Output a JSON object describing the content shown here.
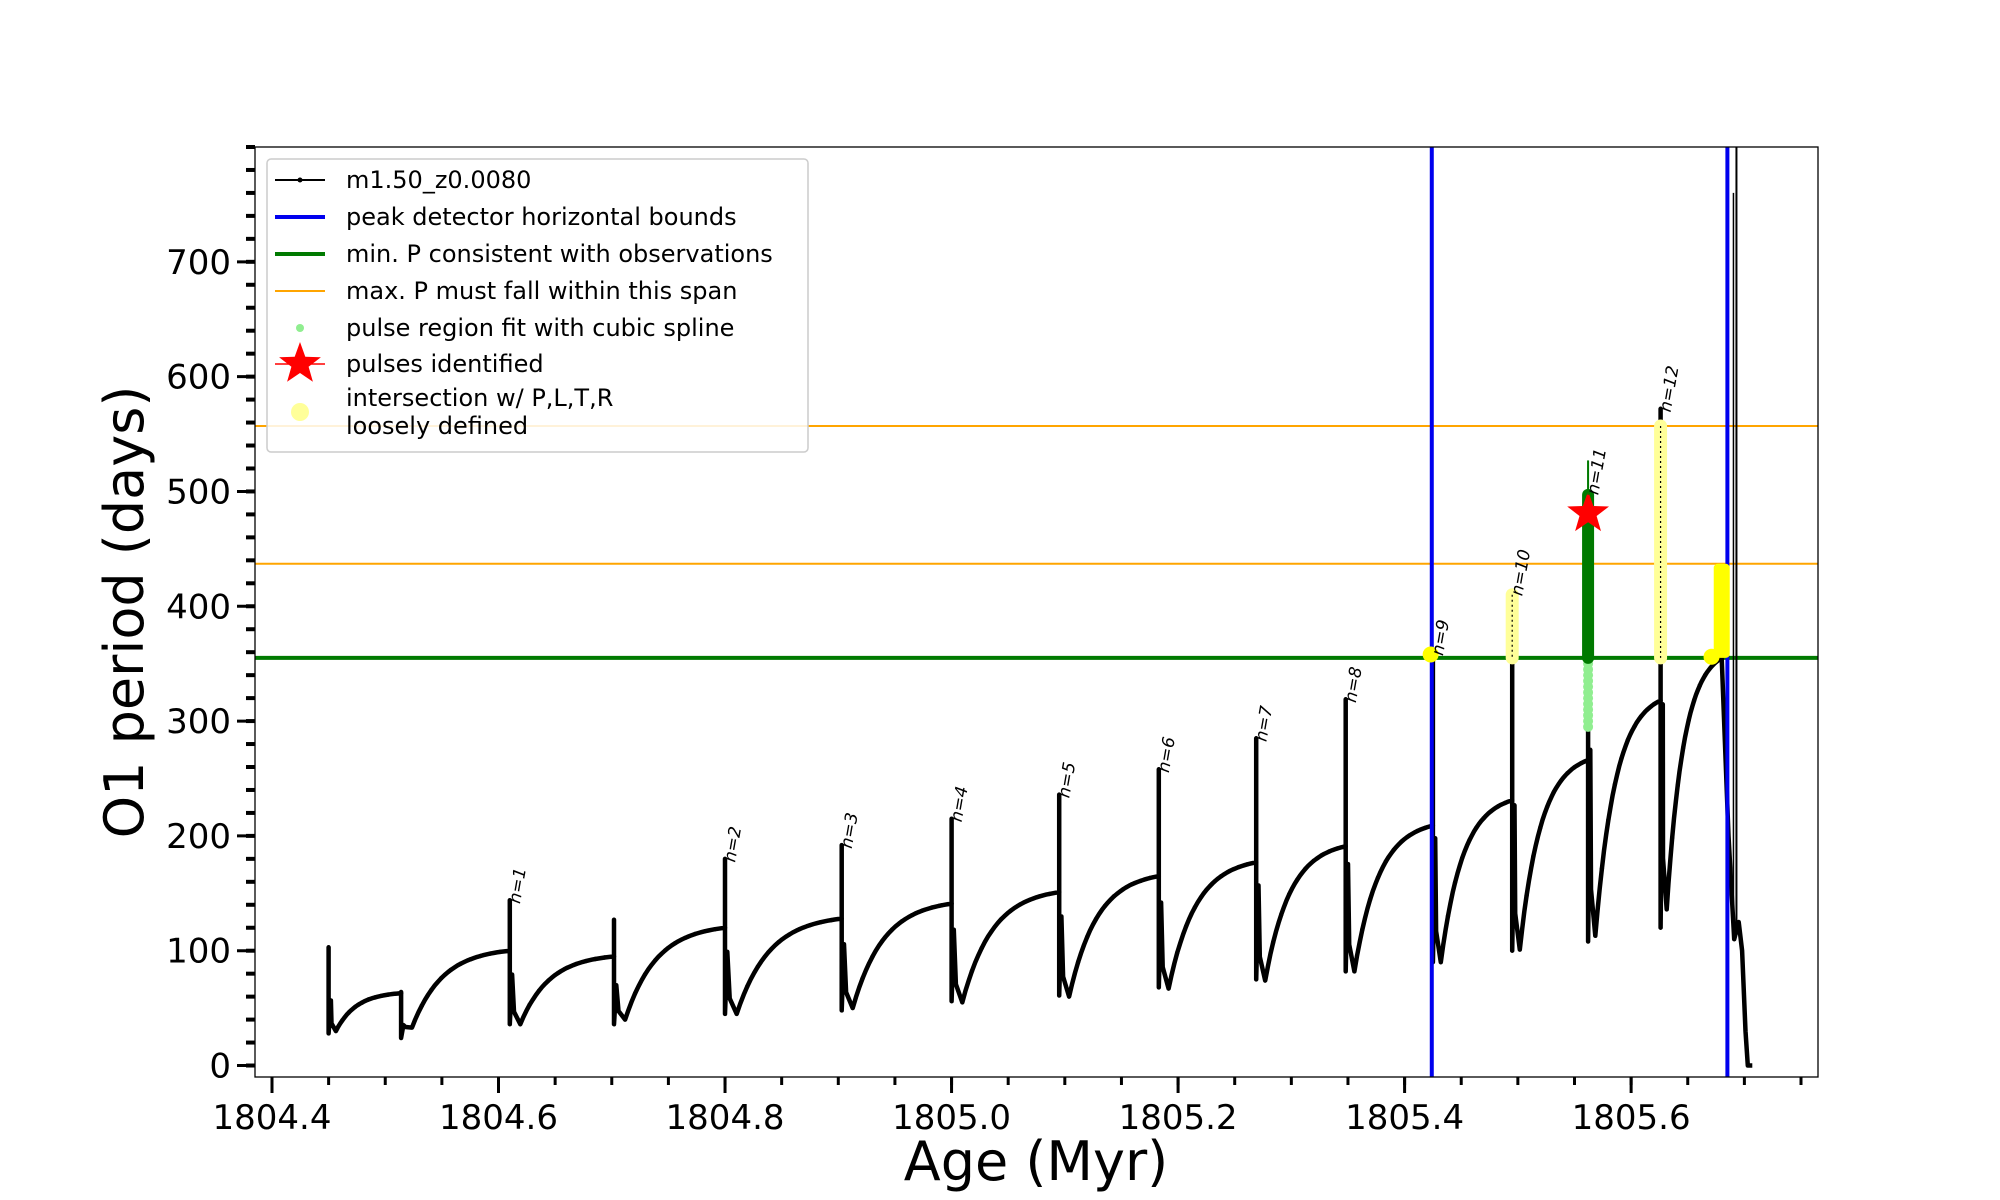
{
  "chart_data": {
    "type": "line",
    "xlabel": "Age (Myr)",
    "ylabel": "O1 period (days)",
    "xlim": [
      1804.385,
      1805.765
    ],
    "ylim": [
      -10,
      800
    ],
    "xticks": [
      1804.4,
      1804.6,
      1804.8,
      1805.0,
      1805.2,
      1805.4,
      1805.6
    ],
    "xtick_labels": [
      "1804.4",
      "1804.6",
      "1804.8",
      "1805.0",
      "1805.2",
      "1805.4",
      "1805.6"
    ],
    "yticks": [
      0,
      100,
      200,
      300,
      400,
      500,
      600,
      700
    ],
    "ytick_labels": [
      "0",
      "100",
      "200",
      "300",
      "400",
      "500",
      "600",
      "700"
    ],
    "legend_position": "top-left",
    "legend": [
      {
        "label": "m1.50_z0.0080",
        "kind": "line-marker",
        "color": "#000000"
      },
      {
        "label": "peak detector horizontal bounds",
        "kind": "line",
        "color": "#0000ee"
      },
      {
        "label": "min. P consistent with observations",
        "kind": "line",
        "color": "#007a00"
      },
      {
        "label": "max. P must fall within this span",
        "kind": "thinline",
        "color": "#ffa500"
      },
      {
        "label": "pulse region fit with cubic spline",
        "kind": "dot",
        "color": "#90ee90"
      },
      {
        "label": "pulses identified",
        "kind": "star",
        "color": "#ff0000"
      },
      {
        "label": "intersection w/ P,L,T,R",
        "label2": "loosely defined",
        "kind": "bigdot",
        "color": "#ffff99"
      }
    ],
    "colors": {
      "track": "#000000",
      "bounds": "#0000ee",
      "min_p": "#007a00",
      "max_p": "#ffa500",
      "spline": "#90ee90",
      "star": "#ff0000",
      "intersection": "#ffff00",
      "intersection_light": "#ffff99"
    },
    "vertical_bounds": [
      1805.424,
      1805.685
    ],
    "min_p": 355,
    "max_p_span": [
      437,
      557
    ],
    "cycles": [
      {
        "t0": 1804.45,
        "t1": 1804.514,
        "base": 28,
        "min": 30,
        "plateau": 63,
        "peak": 103
      },
      {
        "t0": 1804.514,
        "t1": 1804.61,
        "base": 24,
        "min": 33,
        "plateau": 100,
        "peak": 64
      },
      {
        "t0": 1804.61,
        "t1": 1804.702,
        "base": 36,
        "min": 36,
        "plateau": 95,
        "peak": 144
      },
      {
        "t0": 1804.702,
        "t1": 1804.8,
        "base": 36,
        "min": 40,
        "plateau": 120,
        "peak": 127
      },
      {
        "t0": 1804.8,
        "t1": 1804.903,
        "base": 45,
        "min": 45,
        "plateau": 128,
        "peak": 180
      },
      {
        "t0": 1804.903,
        "t1": 1805.0,
        "base": 48,
        "min": 50,
        "plateau": 141,
        "peak": 192
      },
      {
        "t0": 1805.0,
        "t1": 1805.095,
        "base": 56,
        "min": 55,
        "plateau": 151,
        "peak": 215
      },
      {
        "t0": 1805.095,
        "t1": 1805.183,
        "base": 61,
        "min": 60,
        "plateau": 165,
        "peak": 236
      },
      {
        "t0": 1805.183,
        "t1": 1805.269,
        "base": 68,
        "min": 67,
        "plateau": 177,
        "peak": 258
      },
      {
        "t0": 1805.269,
        "t1": 1805.348,
        "base": 75,
        "min": 74,
        "plateau": 191,
        "peak": 285
      },
      {
        "t0": 1805.348,
        "t1": 1805.425,
        "base": 82,
        "min": 82,
        "plateau": 209,
        "peak": 319
      },
      {
        "t0": 1805.425,
        "t1": 1805.495,
        "base": 90,
        "min": 90,
        "plateau": 231,
        "peak": 360
      },
      {
        "t0": 1805.495,
        "t1": 1805.562,
        "base": 100,
        "min": 101,
        "plateau": 266,
        "peak": 412
      },
      {
        "t0": 1805.562,
        "t1": 1805.626,
        "base": 108,
        "min": 113,
        "plateau": 318,
        "peak": 500
      },
      {
        "t0": 1805.626,
        "t1": 1805.68,
        "base": 120,
        "min": 136,
        "plateau": 355,
        "peak": 572
      }
    ],
    "pulse_labels": [
      {
        "text": "n=1",
        "x": 1804.61,
        "y": 144
      },
      {
        "text": "n=2",
        "x": 1804.8,
        "y": 180
      },
      {
        "text": "n=3",
        "x": 1804.903,
        "y": 192
      },
      {
        "text": "n=4",
        "x": 1805.0,
        "y": 215
      },
      {
        "text": "n=5",
        "x": 1805.095,
        "y": 236
      },
      {
        "text": "n=6",
        "x": 1805.183,
        "y": 258
      },
      {
        "text": "n=7",
        "x": 1805.269,
        "y": 285
      },
      {
        "text": "n=8",
        "x": 1805.348,
        "y": 319
      },
      {
        "text": "n=9",
        "x": 1805.425,
        "y": 360
      },
      {
        "text": "n=10",
        "x": 1805.495,
        "y": 412
      },
      {
        "text": "n=11",
        "x": 1805.562,
        "y": 500
      },
      {
        "text": "n=12",
        "x": 1805.626,
        "y": 572
      }
    ],
    "green_segment": {
      "x": 1805.562,
      "y_low": 355,
      "y_high": 497,
      "y_top": 527
    },
    "spline_segment": {
      "x": 1805.562,
      "y_low": 295,
      "y_high": 355
    },
    "star": {
      "x": 1805.562,
      "y": 481
    },
    "yellow_segments": [
      {
        "x": 1805.495,
        "y_low": 355,
        "y_high": 410
      },
      {
        "x": 1805.626,
        "y_low": 355,
        "y_high": 557
      }
    ],
    "yellow_bar": {
      "x": 1805.68,
      "y_low": 355,
      "y_high": 437
    },
    "yellow_points": [
      {
        "x": 1805.423,
        "y": 358
      },
      {
        "x": 1805.671,
        "y": 356
      }
    ],
    "final_spike": {
      "x": 1805.693,
      "y_top": 800
    },
    "tail": [
      {
        "x": 1805.68,
        "y": 355
      },
      {
        "x": 1805.686,
        "y": 200
      },
      {
        "x": 1805.691,
        "y": 110
      },
      {
        "x": 1805.695,
        "y": 125
      },
      {
        "x": 1805.698,
        "y": 100
      },
      {
        "x": 1805.701,
        "y": 30
      },
      {
        "x": 1805.703,
        "y": 0
      },
      {
        "x": 1805.707,
        "y": 0
      }
    ]
  }
}
